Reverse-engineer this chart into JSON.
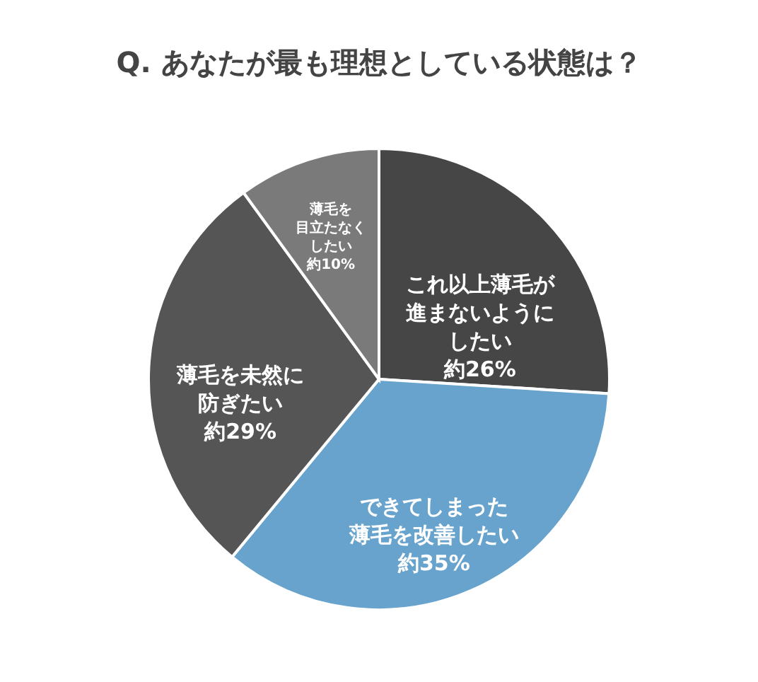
{
  "chart_data": {
    "type": "pie",
    "title": "Q. あなたが最も理想としている状態は？",
    "categories": [
      "これ以上薄毛が進まないようにしたい",
      "できてしまった薄毛を改善したい",
      "薄毛を未然に防ぎたい",
      "薄毛を目立たなくしたい"
    ],
    "values": [
      26,
      35,
      29,
      10
    ],
    "value_labels": [
      "約26%",
      "約35%",
      "約29%",
      "約10%"
    ],
    "colors": [
      "#464646",
      "#67a3cc",
      "#555555",
      "#7a7a7a"
    ],
    "legend": false
  }
}
